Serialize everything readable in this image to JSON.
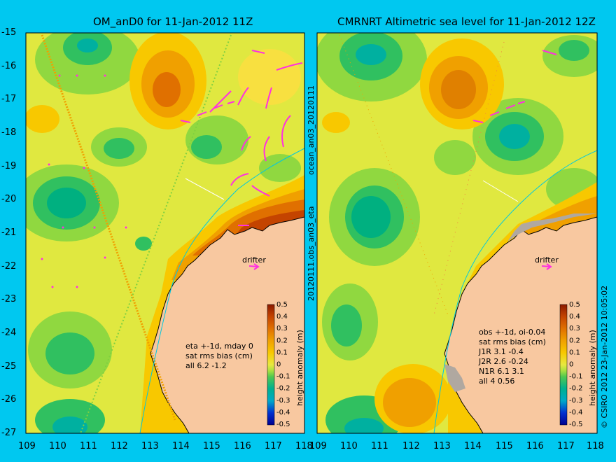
{
  "left_panel": {
    "title": "OM_anD0 for 11-Jan-2012 11Z",
    "stats": [
      "eta +-1d, mday 0",
      "sat rms bias (cm)",
      "all 6.2 -1.2"
    ],
    "drifter_label": "drifter"
  },
  "right_panel": {
    "title": "CMRNRT Altimetric sea level  for 11-Jan-2012 12Z",
    "stats": [
      "obs +-1d, oi-0.04",
      "sat rms bias (cm)",
      "J1R   3.1 -0.4",
      "J2R   2.6 -0.24",
      "N1R   6.1  3.1",
      "all 4  0.56"
    ],
    "drifter_label": "drifter"
  },
  "axes": {
    "y_ticks": [
      "-15",
      "-16",
      "-17",
      "-18",
      "-19",
      "-20",
      "-21",
      "-22",
      "-23",
      "-24",
      "-25",
      "-26",
      "-27"
    ],
    "x_ticks": [
      "109",
      "110",
      "111",
      "112",
      "113",
      "114",
      "115",
      "116",
      "117",
      "118"
    ],
    "lon_range": [
      109,
      118
    ],
    "lat_range": [
      -27,
      -15
    ]
  },
  "colorbar": {
    "label": "height anomaly (m)",
    "ticks": [
      "0.5",
      "0.4",
      "0.3",
      "0.2",
      "0.1",
      "0",
      "-0.1",
      "-0.2",
      "-0.3",
      "-0.4",
      "-0.5"
    ],
    "colors": [
      "#8b1a00",
      "#c44400",
      "#e07000",
      "#f0a000",
      "#f8c800",
      "#e8e840",
      "#a8e040",
      "#50c850",
      "#00b090",
      "#00a8c8",
      "#0070e0",
      "#0030d0",
      "#000090"
    ]
  },
  "side_text": [
    "20120111.obs_an03_eta",
    "ocean_an03_20120111"
  ],
  "copyright": "© CSIRO 2012  23-Jan-2012 10:05:02"
}
